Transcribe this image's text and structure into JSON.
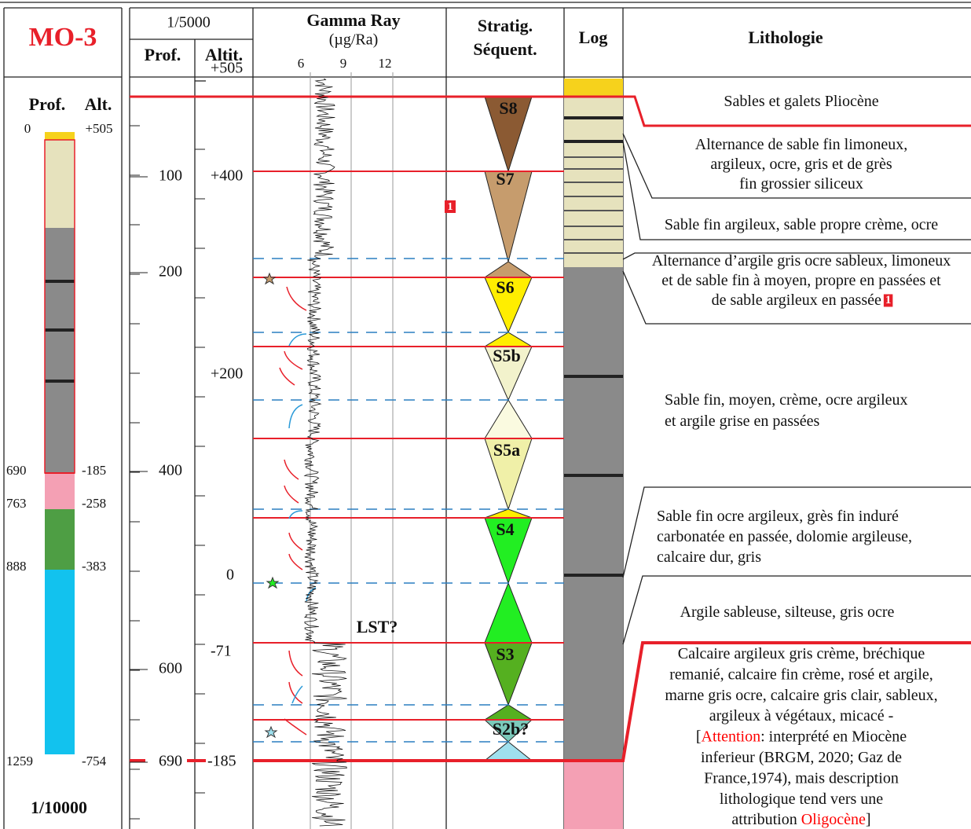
{
  "header": {
    "well": "MO-3",
    "scale": "1/5000",
    "prof": "Prof.",
    "altit": "Altit.",
    "gamma_title": "Gamma Ray",
    "gamma_unit": "(µg/Ra)",
    "gamma_ticks": [
      "6",
      "9",
      "12"
    ],
    "stratig": [
      "Stratig.",
      "Séquent."
    ],
    "log": "Log",
    "lithologie": "Lithologie"
  },
  "summary_column": {
    "prof": "Prof.",
    "alt": "Alt.",
    "top": [
      "0",
      "+505"
    ],
    "markers": [
      [
        "690",
        "-185"
      ],
      [
        "763",
        "-258"
      ],
      [
        "888",
        "-383"
      ],
      [
        "1259",
        "-754"
      ]
    ],
    "scale": "1/10000"
  },
  "depth_labels": {
    "prof": [
      "100",
      "200",
      "400",
      "600",
      "690"
    ],
    "altit": [
      "+505",
      "+400",
      "+200",
      "0",
      "-71",
      "-185"
    ]
  },
  "sequences": [
    "S8",
    "S7",
    "S6",
    "S5b",
    "S5a",
    "S4",
    "S3",
    "S2b?"
  ],
  "annotations": {
    "lst": "LST?",
    "marker": "1"
  },
  "lithology": [
    {
      "lines": [
        [
          {
            "text": "Sables et galets Pliocène"
          }
        ]
      ]
    },
    {
      "lines": [
        [
          {
            "text": "Alternance de sable fin limoneux,"
          }
        ],
        [
          {
            "text": "argileux, ocre, gris et de grès"
          }
        ],
        [
          {
            "text": "fin grossier siliceux"
          }
        ]
      ]
    },
    {
      "lines": [
        [
          {
            "text": "Sable fin argileux, sable propre crème, ocre"
          }
        ]
      ]
    },
    {
      "lines": [
        [
          {
            "text": "Alternance d’argile gris ocre sableux, limoneux"
          }
        ],
        [
          {
            "text": "et de sable fin à moyen, propre en passées et"
          }
        ],
        [
          {
            "text": "de sable argileux en passée "
          },
          {
            "text": "1",
            "badge": true
          }
        ]
      ]
    },
    {
      "lines": [
        [
          {
            "text": "Sable fin, moyen, crème, ocre argileux"
          }
        ],
        [
          {
            "text": "et argile grise en passées"
          }
        ]
      ]
    },
    {
      "lines": [
        [
          {
            "text": "Sable fin ocre argileux, grès fin induré"
          }
        ],
        [
          {
            "text": "carbonatée en passée, dolomie argileuse,"
          }
        ],
        [
          {
            "text": "calcaire dur, gris"
          }
        ]
      ]
    },
    {
      "lines": [
        [
          {
            "text": "Argile sableuse, silteuse, gris ocre"
          }
        ]
      ]
    },
    {
      "lines": [
        [
          {
            "text": "Calcaire argileux gris crème, bréchique"
          }
        ],
        [
          {
            "text": "remanié, calcaire fin crème, rosé et argile,"
          }
        ],
        [
          {
            "text": "marne gris ocre, calcaire gris clair, sableux,"
          }
        ],
        [
          {
            "text": "argileux à végétaux, micacé  -"
          }
        ],
        [
          {
            "text": "["
          },
          {
            "text": "Attention",
            "color": "red"
          },
          {
            "text": ": interprété en Miocène"
          }
        ],
        [
          {
            "text": "inferieur (BRGM, 2020; Gaz de"
          }
        ],
        [
          {
            "text": "France,1974), mais description"
          }
        ],
        [
          {
            "text": "lithologique tend vers une"
          }
        ],
        [
          {
            "text": "attribution "
          },
          {
            "text": "Oligocène",
            "color": "red"
          },
          {
            "text": "]"
          }
        ]
      ]
    }
  ]
}
